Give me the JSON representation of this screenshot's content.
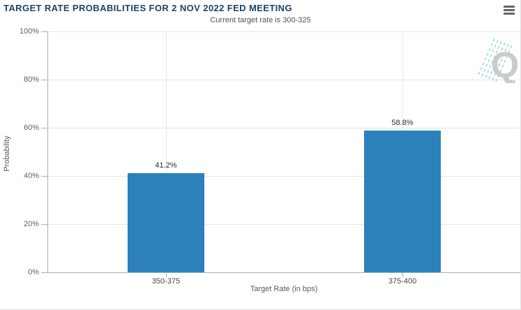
{
  "header": {
    "title": "TARGET RATE PROBABILITIES FOR 2 NOV 2022 FED MEETING"
  },
  "watermark": {
    "letter": "Q"
  },
  "chart_data": {
    "type": "bar",
    "title": "TARGET RATE PROBABILITIES FOR 2 NOV 2022 FED MEETING",
    "subtitle": "Current target rate is 300-325",
    "categories": [
      "350-375",
      "375-400"
    ],
    "values": [
      41.2,
      58.8
    ],
    "data_labels": [
      "41.2%",
      "58.8%"
    ],
    "xlabel": "Target Rate (in bps)",
    "ylabel": "Probability",
    "ylim": [
      0,
      100
    ],
    "ytick_labels": [
      "0%",
      "20%",
      "40%",
      "60%",
      "80%",
      "100%"
    ],
    "grid": true,
    "legend": "none",
    "bar_color": "#2c81ba",
    "gridline_color": "#e6e6e6",
    "axis_color": "#b0b0b0",
    "title_color": "#1f4266"
  }
}
